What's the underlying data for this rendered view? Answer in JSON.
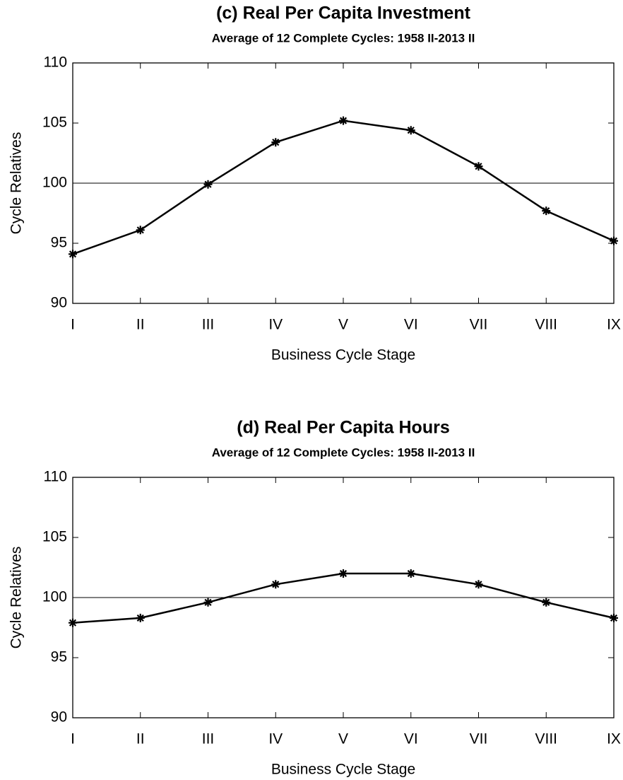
{
  "chart_data": [
    {
      "type": "line",
      "title": "(c) Real Per Capita Investment",
      "subtitle": "Average of 12 Complete Cycles: 1958 II-2013 II",
      "x_label": "Business Cycle Stage",
      "y_label": "Cycle Relatives",
      "categories": [
        "I",
        "II",
        "III",
        "IV",
        "V",
        "VI",
        "VII",
        "VIII",
        "IX"
      ],
      "values": [
        94.1,
        96.1,
        99.9,
        103.4,
        105.2,
        104.4,
        101.4,
        97.7,
        95.2
      ],
      "color": "#000000",
      "ylim": [
        90,
        110
      ],
      "yticks": [
        90,
        95,
        100,
        105,
        110
      ],
      "reference_line": 100
    },
    {
      "type": "line",
      "title": "(d) Real Per Capita Hours",
      "subtitle": "Average of 12 Complete Cycles: 1958 II-2013 II",
      "x_label": "Business Cycle Stage",
      "y_label": "Cycle Relatives",
      "categories": [
        "I",
        "II",
        "III",
        "IV",
        "V",
        "VI",
        "VII",
        "VIII",
        "IX"
      ],
      "values": [
        97.9,
        98.3,
        99.6,
        101.1,
        102.0,
        102.0,
        101.1,
        99.6,
        98.3
      ],
      "color": "#000000",
      "ylim": [
        90,
        110
      ],
      "yticks": [
        90,
        95,
        100,
        105,
        110
      ],
      "reference_line": 100
    }
  ]
}
